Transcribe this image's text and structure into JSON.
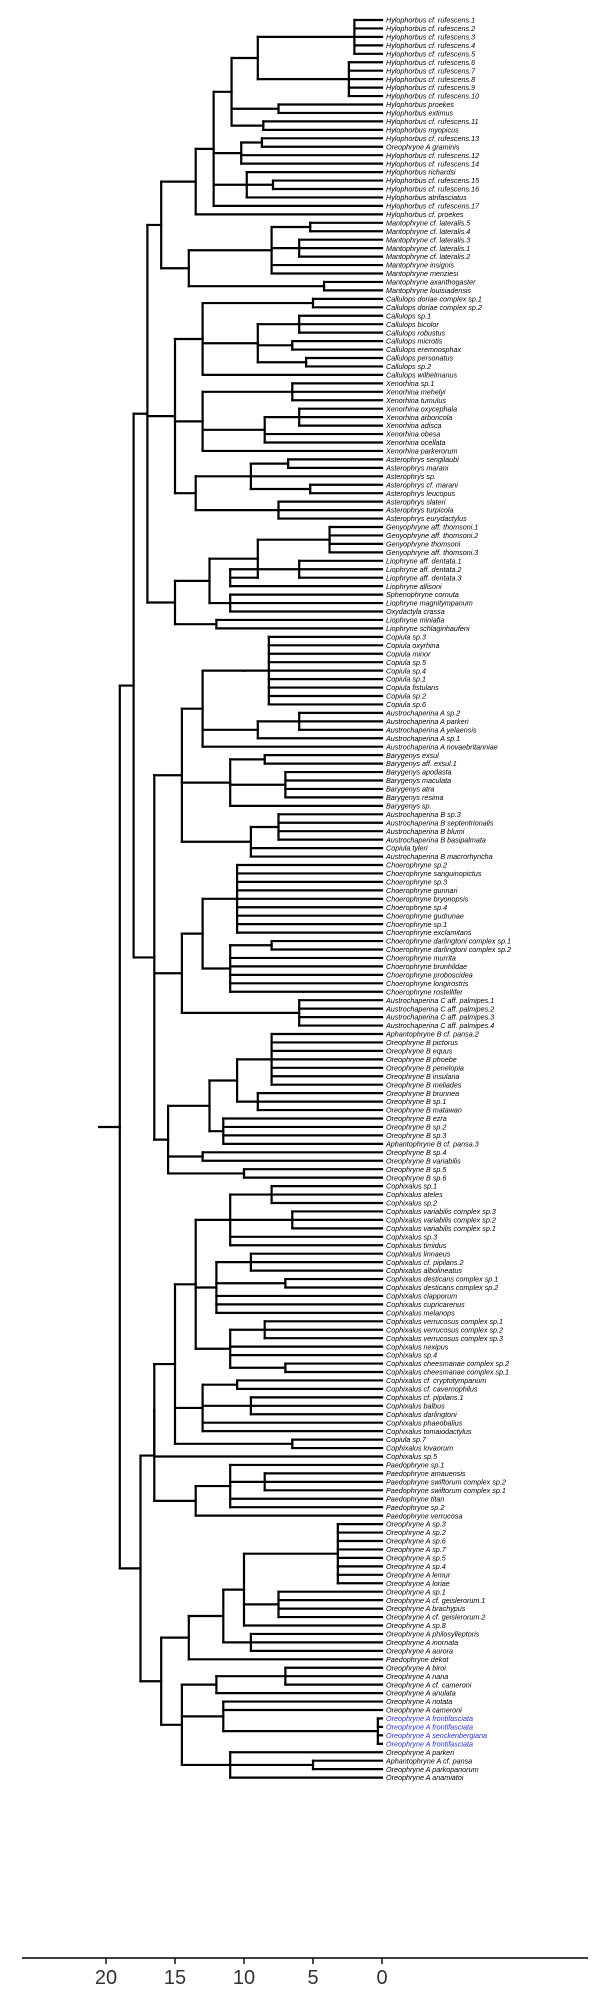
{
  "tree": {
    "axis": {
      "ticks": [
        20,
        15,
        10,
        5,
        0
      ]
    },
    "highlight_color": "#2d2dcc",
    "line_color": "#000000",
    "tips": [
      {
        "label": "Hylophorbus cf. rufescens.1"
      },
      {
        "label": "Hylophorbus cf. rufescens.2"
      },
      {
        "label": "Hylophorbus cf. rufescens.3"
      },
      {
        "label": "Hylophorbus cf. rufescens.4"
      },
      {
        "label": "Hylophorbus cf. rufescens.5"
      },
      {
        "label": "Hylophorbus cf. rufescens.6"
      },
      {
        "label": "Hylophorbus cf. rufescens.7"
      },
      {
        "label": "Hylophorbus cf. rufescens.8"
      },
      {
        "label": "Hylophorbus cf. rufescens.9"
      },
      {
        "label": "Hylophorbus cf. rufescens.10"
      },
      {
        "label": "Hylophorbus proekes"
      },
      {
        "label": "Hylophorbus extimus"
      },
      {
        "label": "Hylophorbus cf. rufescens.11"
      },
      {
        "label": "Hylophorbus myopicus"
      },
      {
        "label": "Hylophorbus cf. rufescens.13"
      },
      {
        "label": "Oreophryne A graminis"
      },
      {
        "label": "Hylophorbus cf. rufescens.12"
      },
      {
        "label": "Hylophorbus cf. rufescens.14"
      },
      {
        "label": "Hylophorbus richardsi"
      },
      {
        "label": "Hylophorbus cf. rufescens.15"
      },
      {
        "label": "Hylophorbus cf. rufescens.16"
      },
      {
        "label": "Hylophorbus atrifasciatus"
      },
      {
        "label": "Hylophorbus cf. rufescens.17"
      },
      {
        "label": "Hylophorbus cf. proekes"
      },
      {
        "label": "Mantophryne cf. lateralis.5"
      },
      {
        "label": "Mantophryne cf. lateralis.4"
      },
      {
        "label": "Mantophryne cf. lateralis.3"
      },
      {
        "label": "Mantophryne cf. lateralis.1"
      },
      {
        "label": "Mantophryne cf. lateralis.2"
      },
      {
        "label": "Mantophryne insignis"
      },
      {
        "label": "Mantophryne menziesi"
      },
      {
        "label": "Mantophryne axanthogaster"
      },
      {
        "label": "Mantophryne louisiadensis"
      },
      {
        "label": "Callulops doriae complex sp.1"
      },
      {
        "label": "Callulops doriae complex sp.2"
      },
      {
        "label": "Callulops sp.1"
      },
      {
        "label": "Callulops bicolor"
      },
      {
        "label": "Callulops robustus"
      },
      {
        "label": "Callulops microtis"
      },
      {
        "label": "Callulops eremnosphax"
      },
      {
        "label": "Callulops personatus"
      },
      {
        "label": "Callulops sp.2"
      },
      {
        "label": "Callulops wilhelmanus"
      },
      {
        "label": "Xenorhina sp.1"
      },
      {
        "label": "Xenorhina mehelyi"
      },
      {
        "label": "Xenorhina tumulus"
      },
      {
        "label": "Xenorhina oxycephala"
      },
      {
        "label": "Xenorhina arboricola"
      },
      {
        "label": "Xenorhina adisca"
      },
      {
        "label": "Xenorhina obesa"
      },
      {
        "label": "Xenorhina ocellata"
      },
      {
        "label": "Xenorhina parkerorum"
      },
      {
        "label": "Asterophrys sengilaubi"
      },
      {
        "label": "Asterophrys marani"
      },
      {
        "label": "Asterophrys sp."
      },
      {
        "label": "Asterophrys cf. marani"
      },
      {
        "label": "Asterophrys leucopus"
      },
      {
        "label": "Asterophrys slateri"
      },
      {
        "label": "Asterophrys turpicola"
      },
      {
        "label": "Asterophrys eurydactylus"
      },
      {
        "label": "Genyophryne aff. thomsoni.1"
      },
      {
        "label": "Genyophryne aff. thomsoni.2"
      },
      {
        "label": "Genyophryne thomsoni"
      },
      {
        "label": "Genyophryne aff. thomsoni.3"
      },
      {
        "label": "Liophryne aff. dentata.1"
      },
      {
        "label": "Liophryne aff. dentata.2"
      },
      {
        "label": "Liophryne aff. dentata.3"
      },
      {
        "label": "Liophryne allisoni"
      },
      {
        "label": "Sphenophryne cornuta"
      },
      {
        "label": "Liophryne magnitympanum"
      },
      {
        "label": "Oxydactyla crassa"
      },
      {
        "label": "Liophryne miniafia"
      },
      {
        "label": "Liophryne schlaginhaufeni"
      },
      {
        "label": "Copiula sp.3"
      },
      {
        "label": "Copiula oxyrhina"
      },
      {
        "label": "Copiula minor"
      },
      {
        "label": "Copiula sp.5"
      },
      {
        "label": "Copiula sp.4"
      },
      {
        "label": "Copiula sp.1"
      },
      {
        "label": "Copiula fistulans"
      },
      {
        "label": "Copiula sp.2"
      },
      {
        "label": "Copiula sp.6"
      },
      {
        "label": "Austrochaperina A sp.2"
      },
      {
        "label": "Austrochaperina A parkeri"
      },
      {
        "label": "Austrochaperina A yelaensis"
      },
      {
        "label": "Austrochaperina A sp.1"
      },
      {
        "label": "Austrochaperina A novaebritanniae"
      },
      {
        "label": "Barygenys exsul"
      },
      {
        "label": "Barygenys aff. exsul.1"
      },
      {
        "label": "Barygenys apodasta"
      },
      {
        "label": "Barygenys maculata"
      },
      {
        "label": "Barygenys atra"
      },
      {
        "label": "Barygenys resima"
      },
      {
        "label": "Barygenys sp."
      },
      {
        "label": "Austrochaperina B sp.3"
      },
      {
        "label": "Austrochaperina B septentrionalis"
      },
      {
        "label": "Austrochaperina B blumi"
      },
      {
        "label": "Austrochaperina B basipalmata"
      },
      {
        "label": "Copiula tyleri"
      },
      {
        "label": "Austrochaperina B macrorhyncha"
      },
      {
        "label": "Choerophryne sp.2"
      },
      {
        "label": "Choerophryne sanguinopictus"
      },
      {
        "label": "Choerophryne sp.3"
      },
      {
        "label": "Choerophryne gunnari"
      },
      {
        "label": "Choerophryne bryonopsis"
      },
      {
        "label": "Choerophryne sp.4"
      },
      {
        "label": "Choerophryne gudrunae"
      },
      {
        "label": "Choerophryne sp.1"
      },
      {
        "label": "Choerophryne exclamitans"
      },
      {
        "label": "Choerophryne darlingtoni complex sp.1"
      },
      {
        "label": "Choerophryne darlingtoni complex sp.2"
      },
      {
        "label": "Choerophryne murrita"
      },
      {
        "label": "Choerophryne brunhildae"
      },
      {
        "label": "Choerophryne proboscidea"
      },
      {
        "label": "Choerophryne longirostris"
      },
      {
        "label": "Choerophryne rostellifer"
      },
      {
        "label": "Austrochaperina C aff. palmipes.1"
      },
      {
        "label": "Austrochaperina C aff. palmipes.2"
      },
      {
        "label": "Austrochaperina C aff. palmipes.3"
      },
      {
        "label": "Austrochaperina C aff. palmipes.4"
      },
      {
        "label": "Aphantophryne B cf. pansa.2"
      },
      {
        "label": "Oreophryne B pictorus"
      },
      {
        "label": "Oreophryne B equus"
      },
      {
        "label": "Oreophryne B phoebe"
      },
      {
        "label": "Oreophryne B penelopia"
      },
      {
        "label": "Oreophryne B insulana"
      },
      {
        "label": "Oreophryne B meliades"
      },
      {
        "label": "Oreophryne B brunnea"
      },
      {
        "label": "Oreophryne B sp.1"
      },
      {
        "label": "Oreophryne B matawan"
      },
      {
        "label": "Oreophryne B ezra"
      },
      {
        "label": "Oreophryne B sp.2"
      },
      {
        "label": "Oreophryne B sp.3"
      },
      {
        "label": "Aphantophryne B cf. pansa.3"
      },
      {
        "label": "Oreophryne B sp.4"
      },
      {
        "label": "Oreophryne B variabilis"
      },
      {
        "label": "Oreophryne B sp.5"
      },
      {
        "label": "Oreophryne B sp.6"
      },
      {
        "label": "Cophixalus sp.1"
      },
      {
        "label": "Cophixalus ateles"
      },
      {
        "label": "Cophixalus sp.2"
      },
      {
        "label": "Cophixalus variabilis complex sp.3"
      },
      {
        "label": "Cophixalus variabilis complex sp.2"
      },
      {
        "label": "Cophixalus variabilis complex sp.1"
      },
      {
        "label": "Cophixalus sp.3"
      },
      {
        "label": "Cophixalus timidus"
      },
      {
        "label": "Cophixalus linnaeus"
      },
      {
        "label": "Cophixalus cf. pipilans.2"
      },
      {
        "label": "Cophixalus albolineatus"
      },
      {
        "label": "Cophixalus desticans complex sp.1"
      },
      {
        "label": "Cophixalus desticans complex sp.2"
      },
      {
        "label": "Cophixalus clapporum"
      },
      {
        "label": "Cophixalus cupricarenus"
      },
      {
        "label": "Cophixalus melanops"
      },
      {
        "label": "Cophixalus verrucosus complex sp.1"
      },
      {
        "label": "Cophixalus verrucosus complex sp.2"
      },
      {
        "label": "Cophixalus verrucosus complex sp.3"
      },
      {
        "label": "Cophixalus nexipus"
      },
      {
        "label": "Cophixalus sp.4"
      },
      {
        "label": "Cophixalus cheesmanae complex sp.2"
      },
      {
        "label": "Cophixalus cheesmanae complex sp.1"
      },
      {
        "label": "Cophixalus cf. cryptotympanum"
      },
      {
        "label": "Cophixalus cf. cavernophilus"
      },
      {
        "label": "Cophixalus cf. pipilans.1"
      },
      {
        "label": "Cophixalus balbus"
      },
      {
        "label": "Cophixalus darlingtoni"
      },
      {
        "label": "Cophixalus phaeobalius"
      },
      {
        "label": "Cophixalus tomaiodactylus"
      },
      {
        "label": "Copiula sp.7"
      },
      {
        "label": "Cophixalus lovaorum"
      },
      {
        "label": "Cophixalus sp.5"
      },
      {
        "label": "Paedophryne sp.1"
      },
      {
        "label": "Paedophryne amauensis"
      },
      {
        "label": "Paedophryne swiftorum complex sp.2"
      },
      {
        "label": "Paedophryne swiftorum complex sp.1"
      },
      {
        "label": "Paedophryne titan"
      },
      {
        "label": "Paedophryne sp.2"
      },
      {
        "label": "Paedophryne verrucosa"
      },
      {
        "label": "Oreophryne A sp.3"
      },
      {
        "label": "Oreophryne A sp.2"
      },
      {
        "label": "Oreophryne A sp.6"
      },
      {
        "label": "Oreophryne A sp.7"
      },
      {
        "label": "Oreophryne A sp.5"
      },
      {
        "label": "Oreophryne A sp.4"
      },
      {
        "label": "Oreophryne A lemur"
      },
      {
        "label": "Oreophryne A loriae"
      },
      {
        "label": "Oreophryne A sp.1"
      },
      {
        "label": "Oreophryne A cf. geislerorum.1"
      },
      {
        "label": "Oreophryne A brachypus"
      },
      {
        "label": "Oreophryne A cf. geislerorum.2"
      },
      {
        "label": "Oreophryne A sp.8"
      },
      {
        "label": "Oreophryne A philosylleptoris"
      },
      {
        "label": "Oreophryne A inornata"
      },
      {
        "label": "Oreophryne A aurora"
      },
      {
        "label": "Paedophryne dekot"
      },
      {
        "label": "Oreophryne A biroi"
      },
      {
        "label": "Oreophryne A nana"
      },
      {
        "label": "Oreophryne A cf. cameroni"
      },
      {
        "label": "Oreophryne A anulata"
      },
      {
        "label": "Oreophryne A notata"
      },
      {
        "label": "Oreophryne A cameroni"
      },
      {
        "label": "Oreophryne A frontifasciata",
        "highlight": true
      },
      {
        "label": "Oreophryne A frontifasciata",
        "highlight": true
      },
      {
        "label": "Oreophryne A senckenbergiana",
        "highlight": true
      },
      {
        "label": "Oreophryne A frontifasciata",
        "highlight": true
      },
      {
        "label": "Oreophryne A parkeri"
      },
      {
        "label": "Aphantophryne A cf. pansa"
      },
      {
        "label": "Oreophryne A parkopanorum"
      },
      {
        "label": "Oreophryne A anamiatoi"
      }
    ]
  }
}
